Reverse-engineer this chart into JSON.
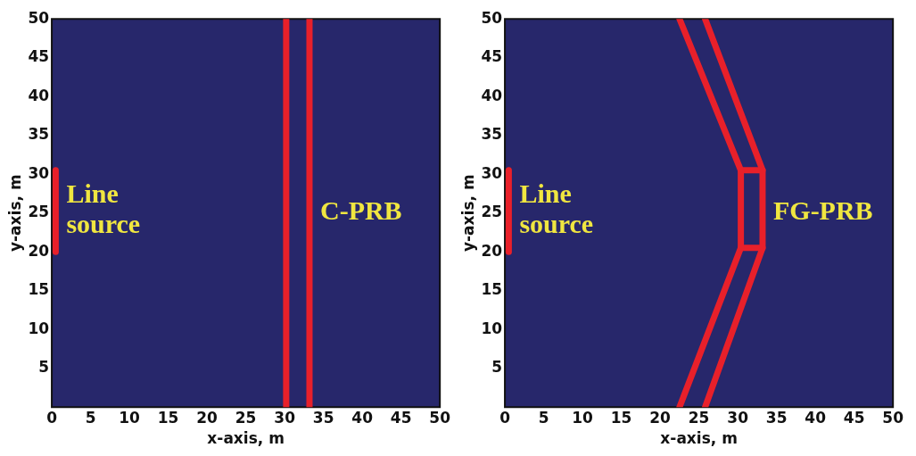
{
  "chart_data": [
    {
      "type": "line",
      "xlabel": "x-axis, m",
      "ylabel": "y-axis, m",
      "xlim": [
        0,
        50
      ],
      "ylim": [
        0,
        50
      ],
      "xticks": [
        0,
        5,
        10,
        15,
        20,
        25,
        30,
        35,
        40,
        45,
        50
      ],
      "yticks": [
        5,
        10,
        15,
        20,
        25,
        30,
        35,
        40,
        45,
        50
      ],
      "series": [
        {
          "color": "#e8202a",
          "x": [
            0.5,
            0.5
          ],
          "values": [
            20,
            30.5
          ]
        },
        {
          "color": "#e8202a",
          "x": [
            30.2,
            30.2
          ],
          "values": [
            0,
            50
          ]
        },
        {
          "color": "#e8202a",
          "x": [
            33.2,
            33.2
          ],
          "values": [
            0,
            50
          ]
        }
      ],
      "annotations": [
        "Line source",
        "C-PRB"
      ]
    },
    {
      "type": "line",
      "xlabel": "x-axis, m",
      "ylabel": "y-axis, m",
      "xlim": [
        0,
        50
      ],
      "ylim": [
        0,
        50
      ],
      "xticks": [
        0,
        5,
        10,
        15,
        20,
        25,
        30,
        35,
        40,
        45,
        50
      ],
      "yticks": [
        5,
        10,
        15,
        20,
        25,
        30,
        35,
        40,
        45,
        50
      ],
      "series": [
        {
          "color": "#e8202a",
          "x": [
            0.5,
            0.5
          ],
          "values": [
            20,
            30.5
          ]
        },
        {
          "color": "#e8202a",
          "x": [
            22.5,
            30.4,
            30.4,
            22.5
          ],
          "values": [
            50,
            30.5,
            20.5,
            0
          ]
        },
        {
          "color": "#e8202a",
          "x": [
            25.8,
            33.2,
            33.2,
            25.8
          ],
          "values": [
            50,
            30.5,
            20.5,
            0
          ]
        },
        {
          "color": "#e8202a",
          "x": [
            30.4,
            33.2
          ],
          "values": [
            30.5,
            30.5
          ]
        },
        {
          "color": "#e8202a",
          "x": [
            30.4,
            33.2
          ],
          "values": [
            20.5,
            20.5
          ]
        }
      ],
      "annotations": [
        "Line source",
        "FG-PRB"
      ]
    }
  ]
}
